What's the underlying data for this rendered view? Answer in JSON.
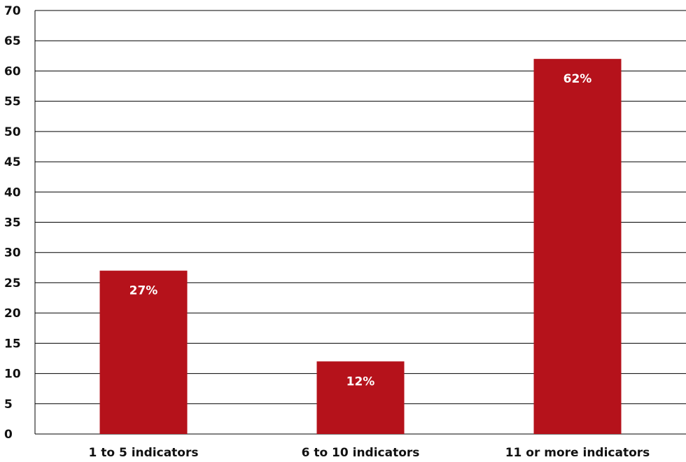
{
  "chart_data": {
    "type": "bar",
    "categories": [
      "1 to 5 indicators",
      "6 to 10 indicators",
      "11 or more indicators"
    ],
    "values": [
      27,
      12,
      62
    ],
    "data_labels": [
      "27%",
      "12%",
      "62%"
    ],
    "title": "",
    "xlabel": "",
    "ylabel": "",
    "ylim": [
      0,
      70
    ],
    "yticks": [
      0,
      5,
      10,
      15,
      20,
      25,
      30,
      35,
      40,
      45,
      50,
      55,
      60,
      65,
      70
    ],
    "grid": true,
    "legend": "none",
    "colors": {
      "bar": "#B5121B",
      "grid": "#000000",
      "text": "#111111",
      "bar_label": "#ffffff"
    }
  }
}
